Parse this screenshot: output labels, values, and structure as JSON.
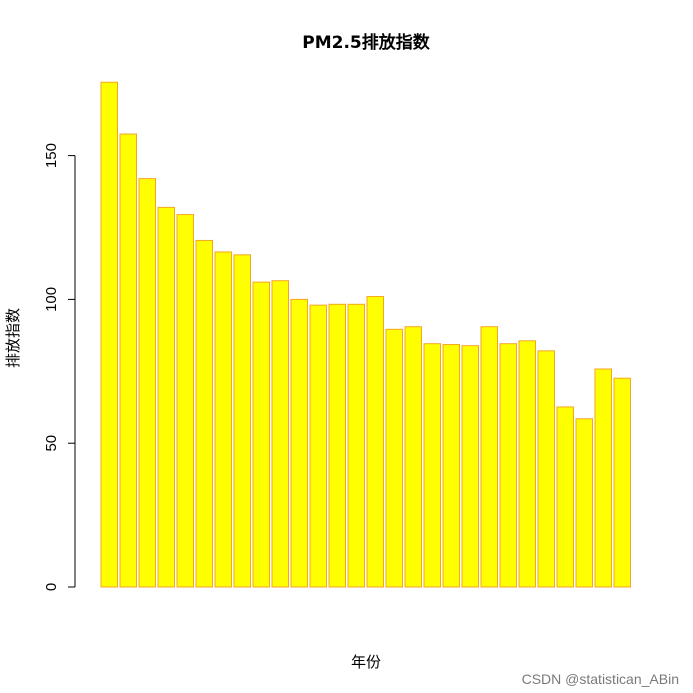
{
  "chart_data": {
    "type": "bar",
    "title": "PM2.5排放指数",
    "xlabel": "年份",
    "ylabel": "排放指数",
    "ylim": [
      0,
      176
    ],
    "yticks": [
      0,
      50,
      100,
      150
    ],
    "grid": false,
    "colors": {
      "bar_fill": "#ffff00",
      "bar_border": "#f5a623",
      "axis": "#000000"
    },
    "values": [
      175.5,
      157.5,
      142,
      132,
      129.5,
      120.5,
      116.5,
      115.5,
      106,
      106.5,
      100,
      98,
      98.3,
      98.3,
      101,
      89.6,
      90.5,
      84.6,
      84.3,
      83.9,
      90.5,
      84.6,
      85.6,
      82.1,
      62.6,
      58.5,
      75.8,
      72.6
    ]
  },
  "watermark": "CSDN @statistican_ABin"
}
